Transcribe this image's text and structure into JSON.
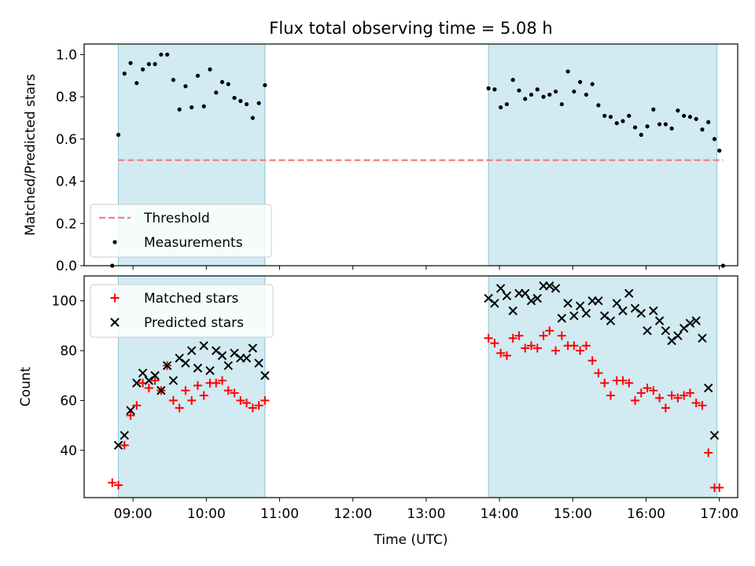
{
  "chart_data": [
    {
      "type": "scatter",
      "title": "Flux total observing time = 5.08 h",
      "xlabel": "",
      "ylabel": "Matched/Predicted stars",
      "ylim": [
        0,
        1.05
      ],
      "yticks": [
        "0.0",
        "0.2",
        "0.4",
        "0.6",
        "0.8",
        "1.0"
      ],
      "grid": false,
      "legend_position": "lower-left",
      "threshold": {
        "name": "Threshold",
        "value": 0.5,
        "color": "#f08080",
        "x_start": "08:48",
        "x_end": "17:03"
      },
      "shaded_intervals": [
        {
          "start": "08:48",
          "end": "10:48"
        },
        {
          "start": "13:51",
          "end": "16:58"
        }
      ],
      "shade_color": "#add8e6",
      "series": [
        {
          "name": "Measurements",
          "color": "#000000",
          "marker": "dot",
          "points": [
            [
              "08:43",
              0.0
            ],
            [
              "08:48",
              0.62
            ],
            [
              "08:53",
              0.91
            ],
            [
              "08:58",
              0.96
            ],
            [
              "09:03",
              0.865
            ],
            [
              "09:08",
              0.93
            ],
            [
              "09:13",
              0.955
            ],
            [
              "09:18",
              0.955
            ],
            [
              "09:23",
              1.0
            ],
            [
              "09:28",
              1.0
            ],
            [
              "09:33",
              0.88
            ],
            [
              "09:38",
              0.74
            ],
            [
              "09:43",
              0.85
            ],
            [
              "09:48",
              0.75
            ],
            [
              "09:53",
              0.9
            ],
            [
              "09:58",
              0.755
            ],
            [
              "10:03",
              0.93
            ],
            [
              "10:08",
              0.82
            ],
            [
              "10:13",
              0.87
            ],
            [
              "10:18",
              0.86
            ],
            [
              "10:23",
              0.795
            ],
            [
              "10:28",
              0.78
            ],
            [
              "10:33",
              0.765
            ],
            [
              "10:38",
              0.7
            ],
            [
              "10:43",
              0.77
            ],
            [
              "10:48",
              0.855
            ],
            [
              "13:51",
              0.84
            ],
            [
              "13:56",
              0.835
            ],
            [
              "14:01",
              0.75
            ],
            [
              "14:06",
              0.765
            ],
            [
              "14:11",
              0.88
            ],
            [
              "14:16",
              0.83
            ],
            [
              "14:21",
              0.79
            ],
            [
              "14:26",
              0.81
            ],
            [
              "14:31",
              0.835
            ],
            [
              "14:36",
              0.8
            ],
            [
              "14:41",
              0.81
            ],
            [
              "14:46",
              0.825
            ],
            [
              "14:51",
              0.765
            ],
            [
              "14:56",
              0.92
            ],
            [
              "15:01",
              0.825
            ],
            [
              "15:06",
              0.87
            ],
            [
              "15:11",
              0.81
            ],
            [
              "15:16",
              0.86
            ],
            [
              "15:21",
              0.76
            ],
            [
              "15:26",
              0.71
            ],
            [
              "15:31",
              0.705
            ],
            [
              "15:36",
              0.675
            ],
            [
              "15:41",
              0.685
            ],
            [
              "15:46",
              0.71
            ],
            [
              "15:51",
              0.655
            ],
            [
              "15:56",
              0.62
            ],
            [
              "16:01",
              0.66
            ],
            [
              "16:06",
              0.74
            ],
            [
              "16:11",
              0.67
            ],
            [
              "16:16",
              0.67
            ],
            [
              "16:21",
              0.65
            ],
            [
              "16:26",
              0.735
            ],
            [
              "16:31",
              0.71
            ],
            [
              "16:36",
              0.705
            ],
            [
              "16:41",
              0.695
            ],
            [
              "16:46",
              0.645
            ],
            [
              "16:51",
              0.68
            ],
            [
              "16:56",
              0.6
            ],
            [
              "17:00",
              0.545
            ],
            [
              "17:03",
              0.0
            ]
          ]
        }
      ]
    },
    {
      "type": "scatter",
      "title": "",
      "xlabel": "Time (UTC)",
      "ylabel": "Count",
      "ylim": [
        21,
        110
      ],
      "yticks": [
        "40",
        "60",
        "80",
        "100"
      ],
      "xlim": [
        "08:20",
        "17:15"
      ],
      "xticks": [
        "09:00",
        "10:00",
        "11:00",
        "12:00",
        "13:00",
        "14:00",
        "15:00",
        "16:00",
        "17:00"
      ],
      "grid": false,
      "legend_position": "upper-left",
      "series": [
        {
          "name": "Matched stars",
          "color": "#ff0000",
          "marker": "plus",
          "points": [
            [
              "08:43",
              27
            ],
            [
              "08:48",
              26
            ],
            [
              "08:53",
              42
            ],
            [
              "08:58",
              54
            ],
            [
              "09:03",
              58
            ],
            [
              "09:08",
              67
            ],
            [
              "09:13",
              65
            ],
            [
              "09:18",
              68
            ],
            [
              "09:23",
              64
            ],
            [
              "09:28",
              74
            ],
            [
              "09:33",
              60
            ],
            [
              "09:38",
              57
            ],
            [
              "09:43",
              64
            ],
            [
              "09:48",
              60
            ],
            [
              "09:53",
              66
            ],
            [
              "09:58",
              62
            ],
            [
              "10:03",
              67
            ],
            [
              "10:08",
              67
            ],
            [
              "10:13",
              68
            ],
            [
              "10:18",
              64
            ],
            [
              "10:23",
              63
            ],
            [
              "10:28",
              60
            ],
            [
              "10:33",
              59
            ],
            [
              "10:38",
              57
            ],
            [
              "10:43",
              58
            ],
            [
              "10:48",
              60
            ],
            [
              "13:51",
              85
            ],
            [
              "13:56",
              83
            ],
            [
              "14:01",
              79
            ],
            [
              "14:06",
              78
            ],
            [
              "14:11",
              85
            ],
            [
              "14:16",
              86
            ],
            [
              "14:21",
              81
            ],
            [
              "14:26",
              82
            ],
            [
              "14:31",
              81
            ],
            [
              "14:36",
              86
            ],
            [
              "14:41",
              88
            ],
            [
              "14:46",
              80
            ],
            [
              "14:51",
              86
            ],
            [
              "14:56",
              82
            ],
            [
              "15:01",
              82
            ],
            [
              "15:06",
              80
            ],
            [
              "15:11",
              82
            ],
            [
              "15:16",
              76
            ],
            [
              "15:21",
              71
            ],
            [
              "15:26",
              67
            ],
            [
              "15:31",
              62
            ],
            [
              "15:36",
              68
            ],
            [
              "15:41",
              68
            ],
            [
              "15:46",
              67
            ],
            [
              "15:51",
              60
            ],
            [
              "15:56",
              63
            ],
            [
              "16:01",
              65
            ],
            [
              "16:06",
              64
            ],
            [
              "16:11",
              61
            ],
            [
              "16:16",
              57
            ],
            [
              "16:21",
              62
            ],
            [
              "16:26",
              61
            ],
            [
              "16:31",
              62
            ],
            [
              "16:36",
              63
            ],
            [
              "16:41",
              59
            ],
            [
              "16:46",
              58
            ],
            [
              "16:51",
              39
            ],
            [
              "16:56",
              25
            ],
            [
              "17:00",
              25
            ]
          ]
        },
        {
          "name": "Predicted stars",
          "color": "#000000",
          "marker": "x",
          "points": [
            [
              "08:48",
              42
            ],
            [
              "08:53",
              46
            ],
            [
              "08:58",
              56
            ],
            [
              "09:03",
              67
            ],
            [
              "09:08",
              71
            ],
            [
              "09:13",
              68
            ],
            [
              "09:18",
              70
            ],
            [
              "09:23",
              64
            ],
            [
              "09:28",
              74
            ],
            [
              "09:33",
              68
            ],
            [
              "09:38",
              77
            ],
            [
              "09:43",
              75
            ],
            [
              "09:48",
              80
            ],
            [
              "09:53",
              73
            ],
            [
              "09:58",
              82
            ],
            [
              "10:03",
              72
            ],
            [
              "10:08",
              80
            ],
            [
              "10:13",
              78
            ],
            [
              "10:18",
              74
            ],
            [
              "10:23",
              79
            ],
            [
              "10:28",
              77
            ],
            [
              "10:33",
              77
            ],
            [
              "10:38",
              81
            ],
            [
              "10:43",
              75
            ],
            [
              "10:48",
              70
            ],
            [
              "13:51",
              101
            ],
            [
              "13:56",
              99
            ],
            [
              "14:01",
              105
            ],
            [
              "14:06",
              102
            ],
            [
              "14:11",
              96
            ],
            [
              "14:16",
              103
            ],
            [
              "14:21",
              103
            ],
            [
              "14:26",
              100
            ],
            [
              "14:31",
              101
            ],
            [
              "14:36",
              106
            ],
            [
              "14:41",
              106
            ],
            [
              "14:46",
              105
            ],
            [
              "14:51",
              93
            ],
            [
              "14:56",
              99
            ],
            [
              "15:01",
              94
            ],
            [
              "15:06",
              98
            ],
            [
              "15:11",
              95
            ],
            [
              "15:16",
              100
            ],
            [
              "15:21",
              100
            ],
            [
              "15:26",
              94
            ],
            [
              "15:31",
              92
            ],
            [
              "15:36",
              99
            ],
            [
              "15:41",
              96
            ],
            [
              "15:46",
              103
            ],
            [
              "15:51",
              97
            ],
            [
              "15:56",
              95
            ],
            [
              "16:01",
              88
            ],
            [
              "16:06",
              96
            ],
            [
              "16:11",
              92
            ],
            [
              "16:16",
              88
            ],
            [
              "16:21",
              84
            ],
            [
              "16:26",
              86
            ],
            [
              "16:31",
              89
            ],
            [
              "16:36",
              91
            ],
            [
              "16:41",
              92
            ],
            [
              "16:46",
              85
            ],
            [
              "16:51",
              65
            ],
            [
              "16:56",
              46
            ]
          ]
        }
      ]
    }
  ]
}
